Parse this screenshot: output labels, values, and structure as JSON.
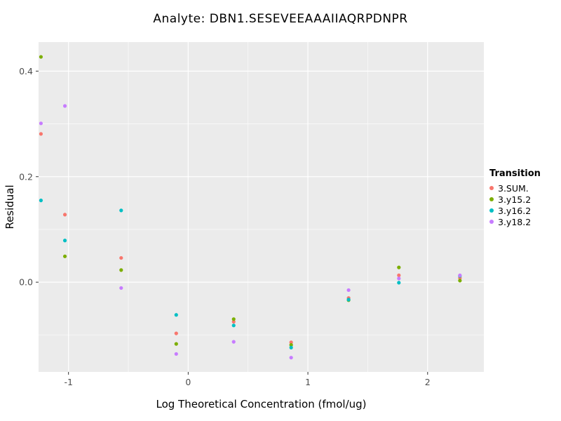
{
  "colors": {
    "panel_bg": "#EBEBEB",
    "grid_major": "#FFFFFF",
    "grid_minor": "#FFFFFF",
    "tick_text": "#4D4D4D",
    "tick_mark": "#333333"
  },
  "chart_data": {
    "type": "scatter",
    "title": "Analyte: DBN1.SESEVEEAAAIIAQRPDNPR",
    "xlabel": "Log Theoretical Concentration (fmol/ug)",
    "ylabel": "Residual",
    "xlim": [
      -1.25,
      2.47
    ],
    "ylim": [
      -0.17,
      0.455
    ],
    "grid": true,
    "x_major_ticks": [
      -1,
      0,
      1,
      2
    ],
    "x_tick_labels": [
      "-1",
      "0",
      "1",
      "2"
    ],
    "x_minor_ticks": [
      -0.5,
      0.5,
      1.5
    ],
    "y_major_ticks": [
      0.0,
      0.2,
      0.4
    ],
    "y_tick_labels": [
      "0.0",
      "0.2",
      "0.4"
    ],
    "y_minor_ticks": [
      -0.1,
      0.1,
      0.3
    ],
    "legend": {
      "title": "Transition",
      "position": "right"
    },
    "series": [
      {
        "name": "3.SUM.",
        "color": "#F8766D",
        "points": [
          [
            -1.23,
            0.281
          ],
          [
            -1.03,
            0.128
          ],
          [
            -0.56,
            0.046
          ],
          [
            -0.1,
            -0.097
          ],
          [
            0.38,
            -0.075
          ],
          [
            0.86,
            -0.114
          ],
          [
            1.34,
            -0.03
          ],
          [
            1.76,
            0.013
          ],
          [
            2.27,
            0.008
          ]
        ]
      },
      {
        "name": "3.y15.2",
        "color": "#7CAE00",
        "points": [
          [
            -1.23,
            0.427
          ],
          [
            -1.03,
            0.049
          ],
          [
            -0.56,
            0.023
          ],
          [
            -0.1,
            -0.117
          ],
          [
            0.38,
            -0.07
          ],
          [
            0.86,
            -0.119
          ],
          [
            1.34,
            -0.034
          ],
          [
            1.76,
            0.028
          ],
          [
            2.27,
            0.003
          ]
        ]
      },
      {
        "name": "3.y16.2",
        "color": "#00BFC4",
        "points": [
          [
            -1.23,
            0.155
          ],
          [
            -1.03,
            0.079
          ],
          [
            -0.56,
            0.136
          ],
          [
            -0.1,
            -0.062
          ],
          [
            0.38,
            -0.082
          ],
          [
            0.86,
            -0.124
          ],
          [
            1.34,
            -0.033
          ],
          [
            1.76,
            -0.001
          ],
          [
            2.27,
            0.012
          ]
        ]
      },
      {
        "name": "3.y18.2",
        "color": "#C77CFF",
        "points": [
          [
            -1.23,
            0.301
          ],
          [
            -1.03,
            0.334
          ],
          [
            -0.56,
            -0.011
          ],
          [
            -0.1,
            -0.136
          ],
          [
            0.38,
            -0.113
          ],
          [
            0.86,
            -0.143
          ],
          [
            1.34,
            -0.015
          ],
          [
            1.76,
            0.007
          ],
          [
            2.27,
            0.013
          ]
        ]
      }
    ]
  }
}
